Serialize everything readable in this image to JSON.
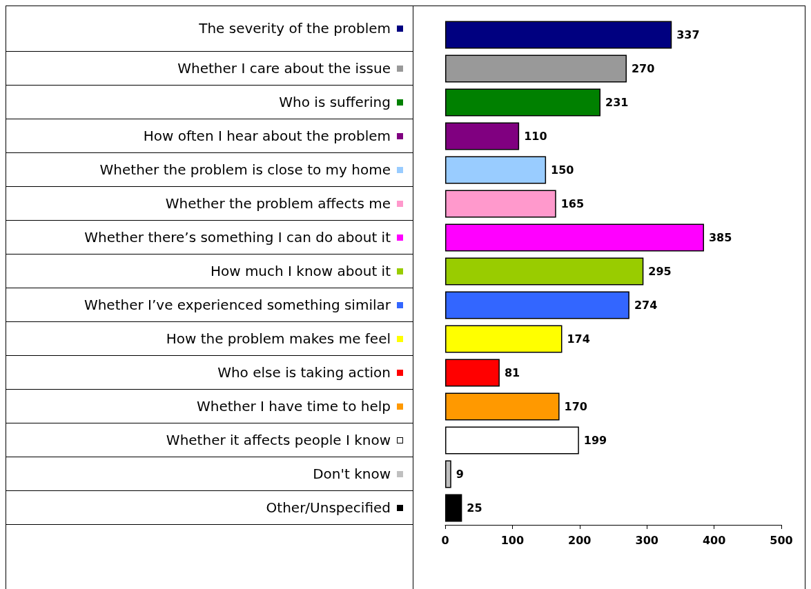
{
  "chart_data": {
    "type": "bar",
    "orientation": "horizontal",
    "categories": [
      "The severity of the problem",
      "Whether I care about the issue",
      "Who is suffering",
      "How often I hear about the problem",
      "Whether the problem is close to my home",
      "Whether the problem affects me",
      "Whether there’s something I can do about it",
      "How much I know about it",
      "Whether I’ve experienced something similar",
      "How the problem makes me feel",
      "Who else is taking action",
      "Whether I have time to help",
      "Whether it affects people I know",
      "Don't know",
      "Other/Unspecified"
    ],
    "values": [
      337,
      270,
      231,
      110,
      150,
      165,
      385,
      295,
      274,
      174,
      81,
      170,
      199,
      9,
      25
    ],
    "colors": [
      "#000080",
      "#999999",
      "#008000",
      "#800080",
      "#99ccff",
      "#ff99cc",
      "#ff00ff",
      "#99cc00",
      "#3366ff",
      "#ffff00",
      "#ff0000",
      "#ff9900",
      "#ffffff",
      "#c0c0c0",
      "#000000"
    ],
    "xlim": [
      0,
      500
    ],
    "xticks": [
      0,
      100,
      200,
      300,
      400,
      500
    ],
    "data_labels": true,
    "grid": false
  }
}
